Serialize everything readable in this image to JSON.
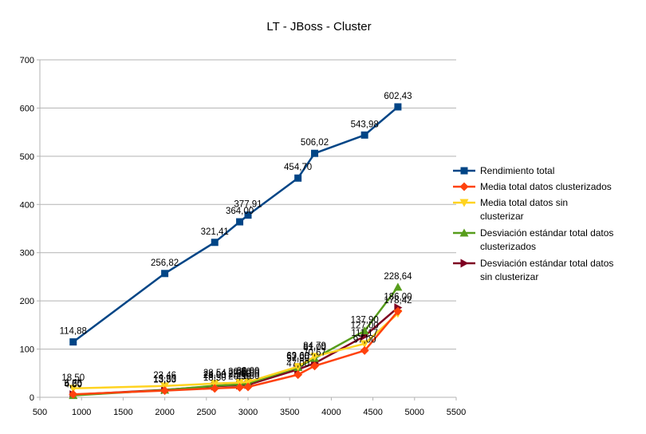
{
  "chart_data": {
    "type": "line",
    "title": "LT - JBoss - Cluster",
    "xlabel": "",
    "ylabel": "",
    "xlim": [
      500,
      5500
    ],
    "ylim": [
      0,
      700
    ],
    "x_ticks": [
      "500",
      "1000",
      "1500",
      "2000",
      "2500",
      "3000",
      "3500",
      "4000",
      "4500",
      "5000",
      "5500"
    ],
    "y_ticks": [
      "0",
      "100",
      "200",
      "300",
      "400",
      "500",
      "600",
      "700"
    ],
    "grid": "horizontal",
    "legend_position": "right",
    "series": [
      {
        "name": "Rendimiento total",
        "color": "#004586",
        "marker": "square",
        "x": [
          900,
          2000,
          2600,
          2900,
          3000,
          3600,
          3800,
          4400,
          4800
        ],
        "y": [
          114.88,
          256.82,
          321.41,
          364.0,
          377.91,
          454.7,
          506.02,
          543.98,
          602.43
        ],
        "labels": [
          "114,88",
          "256,82",
          "321,41",
          "364,00",
          "377,91",
          "454,70",
          "506,02",
          "543,98",
          "602,43"
        ]
      },
      {
        "name": "Media total datos clusterizados",
        "color": "#ff420e",
        "marker": "diamond",
        "x": [
          900,
          2000,
          2600,
          2900,
          3000,
          3600,
          3800,
          4400,
          4800
        ],
        "y": [
          6.26,
          13.83,
          18.5,
          20.5,
          21.5,
          47.0,
          65.0,
          97.0,
          178.42
        ],
        "labels": [
          "6,26",
          "13,83",
          "18,50",
          "20,50",
          "21,50",
          "47,00",
          "",
          "97,00",
          "178,42"
        ]
      },
      {
        "name": "Media total datos sin clusterizar",
        "color": "#ffd320",
        "marker": "triangle-down",
        "x": [
          900,
          2000,
          2600,
          2900,
          3000,
          3600,
          3800,
          4400,
          4800
        ],
        "y": [
          18.5,
          23.46,
          28.54,
          30.5,
          32.0,
          63.6,
          84.79,
          111.17,
          174.0
        ],
        "labels": [
          "18,50",
          "23,46",
          "28,54",
          "30,50",
          "32,00",
          "63,60",
          "84,79",
          "111,17",
          ""
        ]
      },
      {
        "name": "Desviación estándar total datos clusterizados",
        "color": "#579d1c",
        "marker": "triangle-up",
        "x": [
          900,
          2000,
          2600,
          2900,
          3000,
          3600,
          3800,
          4400,
          4800
        ],
        "y": [
          4.0,
          15.0,
          24.0,
          27.0,
          29.0,
          62.0,
          81.0,
          137.9,
          228.64
        ],
        "labels": [
          "4,00",
          "",
          "24,00",
          "27,00",
          "29,00",
          "62,00",
          "81,00",
          "137,90",
          "228,64"
        ]
      },
      {
        "name": "Desviación estándar total datos sin clusterizar",
        "color": "#7e0021",
        "marker": "triangle-right",
        "x": [
          900,
          2000,
          2600,
          2900,
          3000,
          3600,
          3800,
          4400,
          4800
        ],
        "y": [
          5.5,
          15.5,
          23.0,
          25.0,
          26.0,
          57.8,
          70.67,
          127.0,
          186.0
        ],
        "labels": [
          "5,50",
          "15,50",
          "23,00",
          "25,00",
          "26,00",
          "57,80",
          "70,67",
          "127,00",
          "186,00"
        ]
      }
    ]
  }
}
